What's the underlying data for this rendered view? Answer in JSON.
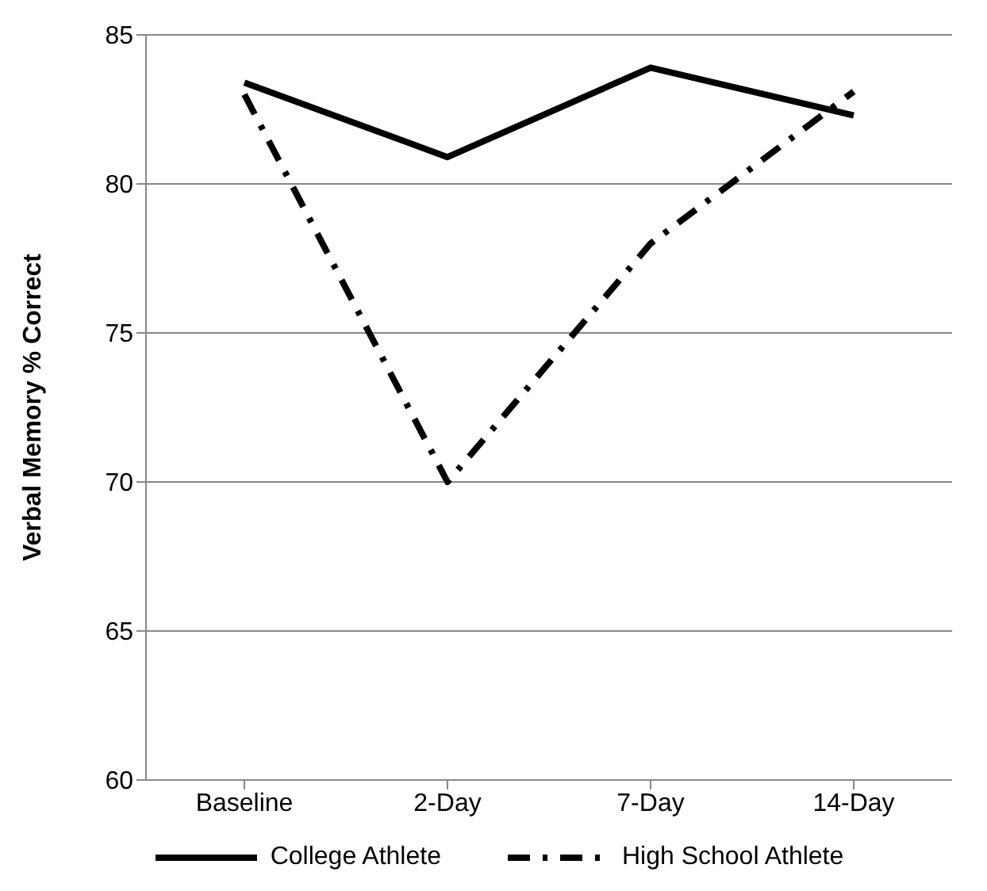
{
  "chart_data": {
    "type": "line",
    "ylabel": "Verbal Memory % Correct",
    "categories": [
      "Baseline",
      "2-Day",
      "7-Day",
      "14-Day"
    ],
    "series": [
      {
        "name": "College Athlete",
        "color": "#000000",
        "values": [
          83.4,
          80.9,
          83.9,
          82.3
        ],
        "line_style": "solid"
      },
      {
        "name": "High School Athlete",
        "color": "#000000",
        "values": [
          83.0,
          70.0,
          78.0,
          83.1
        ],
        "line_style": "dashed"
      }
    ],
    "ylim": [
      60,
      85
    ],
    "yticks": [
      60,
      65,
      70,
      75,
      80,
      85
    ],
    "grid": "y",
    "legend": "bottom",
    "marker": "none"
  }
}
